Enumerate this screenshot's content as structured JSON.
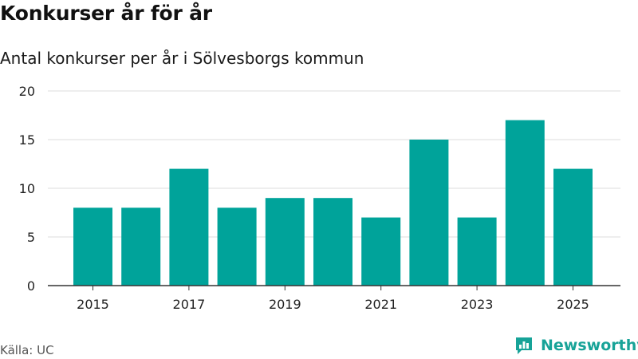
{
  "header": {
    "title": "Konkurser år för år",
    "subtitle": "Antal konkurser per år i Sölvesborgs kommun"
  },
  "footer": {
    "source": "Källa: UC",
    "brand": "Newsworthy",
    "logo_icon": "bar-chart-logo-icon"
  },
  "colors": {
    "bar": "#00a39a",
    "grid": "#dddddd",
    "axis": "#333333",
    "brand": "#17a398"
  },
  "chart_data": {
    "type": "bar",
    "title": "Antal konkurser per år i Sölvesborgs kommun",
    "xlabel": "",
    "ylabel": "",
    "categories": [
      "2015",
      "2016",
      "2017",
      "2018",
      "2019",
      "2020",
      "2021",
      "2022",
      "2023",
      "2024",
      "2025"
    ],
    "values": [
      8,
      8,
      12,
      8,
      9,
      9,
      7,
      15,
      7,
      17,
      12
    ],
    "ylim": [
      0,
      20
    ],
    "yticks": [
      0,
      5,
      10,
      15,
      20
    ],
    "xtick_labels": [
      "2015",
      "2017",
      "2019",
      "2021",
      "2023",
      "2025"
    ],
    "grid": true,
    "legend": "none"
  }
}
